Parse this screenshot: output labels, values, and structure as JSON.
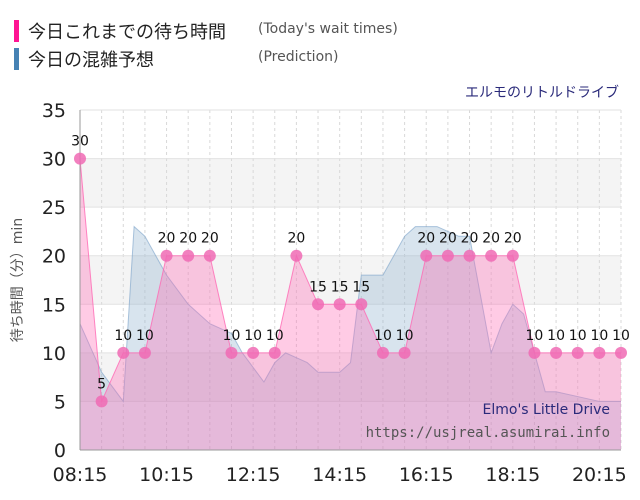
{
  "legend": {
    "today": {
      "label": "今日これまでの待ち時間",
      "label_en": "(Today's wait times)",
      "color": "#ff1493"
    },
    "prediction": {
      "label": "今日の混雑予想",
      "label_en": "(Prediction)",
      "color": "#4682b4"
    }
  },
  "attraction_title": "エルモのリトルドライブ",
  "watermark": {
    "name": "Elmo's Little Drive",
    "url": "https://usjreal.asumirai.info"
  },
  "chart_data": {
    "type": "area",
    "ylabel": "待ち時間（分）min",
    "ylim": [
      0,
      35
    ],
    "yticks": [
      0,
      5,
      10,
      15,
      20,
      25,
      30,
      35
    ],
    "xlim": [
      "08:15",
      "20:45"
    ],
    "xticks": [
      "08:15",
      "10:15",
      "12:15",
      "14:15",
      "16:15",
      "18:15",
      "20:15"
    ],
    "grid": true,
    "series": [
      {
        "key": "prediction",
        "color": "#8fb1cf",
        "x": [
          "08:15",
          "08:45",
          "09:15",
          "09:30",
          "09:45",
          "10:00",
          "10:15",
          "10:45",
          "11:15",
          "11:45",
          "12:00",
          "12:30",
          "12:45",
          "13:00",
          "13:15",
          "13:30",
          "13:45",
          "14:15",
          "14:30",
          "14:45",
          "15:00",
          "15:15",
          "15:45",
          "16:00",
          "16:15",
          "16:30",
          "17:00",
          "17:15",
          "17:30",
          "17:45",
          "18:00",
          "18:15",
          "18:30",
          "18:45",
          "19:00",
          "19:15",
          "19:45",
          "20:15",
          "20:45"
        ],
        "values": [
          13,
          8,
          5,
          23,
          22,
          20,
          18,
          15,
          13,
          12,
          10,
          7,
          9,
          10,
          9.5,
          9,
          8,
          8,
          9,
          18,
          18,
          18,
          22,
          23,
          23,
          23,
          22,
          22,
          16,
          10,
          13,
          15,
          14,
          10,
          6,
          6,
          5.5,
          5,
          5
        ]
      },
      {
        "key": "today",
        "color": "#ff69b4",
        "x": [
          "08:15",
          "08:45",
          "09:15",
          "09:45",
          "10:15",
          "10:45",
          "11:15",
          "11:45",
          "12:15",
          "12:45",
          "13:15",
          "13:45",
          "14:15",
          "14:45",
          "15:15",
          "15:45",
          "16:15",
          "16:45",
          "17:15",
          "17:45",
          "18:15",
          "18:45",
          "19:15",
          "19:45",
          "20:15",
          "20:45"
        ],
        "values": [
          30,
          5,
          10,
          10,
          20,
          20,
          20,
          10,
          10,
          10,
          20,
          15,
          15,
          15,
          10,
          10,
          20,
          20,
          20,
          20,
          20,
          10,
          10,
          10,
          10,
          10
        ]
      }
    ]
  }
}
